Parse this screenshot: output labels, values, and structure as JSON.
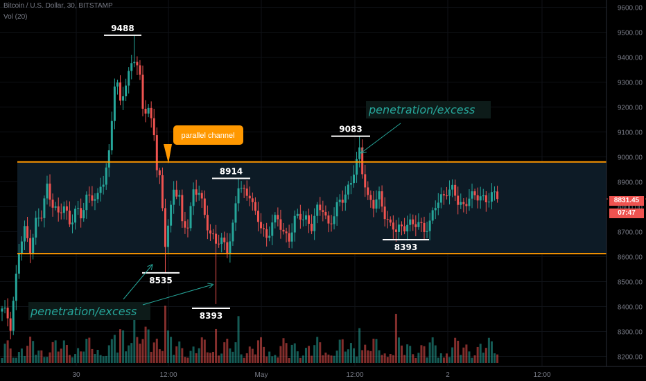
{
  "header": {
    "title": "Bitcoin / U.S. Dollar, 30, BITSTAMP",
    "volume_label": "Vol (20)"
  },
  "current_price": {
    "value": "8831.45",
    "countdown": "07:47",
    "color": "#ef5350"
  },
  "colors": {
    "bull": "#26a69a",
    "bear": "#ef5350",
    "channel": "#ff9800",
    "channel_fill": "#0d1b26",
    "annotation_teal": "#26a69a",
    "axis_text": "#787b86"
  },
  "annotations": {
    "channel_label": "parallel channel",
    "penetration_left": "penetration/excess",
    "penetration_right": "penetration/excess",
    "marks": {
      "high_9488": "9488",
      "low_8535": "8535",
      "low_8393_left": "8393",
      "high_8914": "8914",
      "high_9083": "9083",
      "low_8393_right": "8393"
    }
  },
  "chart_data": {
    "type": "candlestick",
    "title": "Bitcoin / U.S. Dollar, 30, BITSTAMP",
    "y_axis": {
      "labels": [
        "9600.00",
        "9500.00",
        "9400.00",
        "9300.00",
        "9200.00",
        "9100.00",
        "9000.00",
        "8900.00",
        "8800.00",
        "8700.00",
        "8600.00",
        "8500.00",
        "8400.00",
        "8300.00",
        "8200.00"
      ],
      "range": [
        8185,
        9650
      ]
    },
    "x_axis": {
      "labels": [
        "30",
        "12:00",
        "May",
        "12:00",
        "2",
        "12:00"
      ]
    },
    "channel": {
      "upper": 8980,
      "lower": 8612
    },
    "marked_levels": [
      9488,
      8535,
      8393,
      8914,
      9083,
      8393
    ],
    "last_price": 8831.45,
    "close_path": [
      [
        0,
        8380
      ],
      [
        2,
        8360
      ],
      [
        3,
        8330
      ],
      [
        5,
        8520
      ],
      [
        6,
        8620
      ],
      [
        8,
        8700
      ],
      [
        10,
        8640
      ],
      [
        12,
        8740
      ],
      [
        14,
        8760
      ],
      [
        16,
        8880
      ],
      [
        18,
        8820
      ],
      [
        20,
        8760
      ],
      [
        22,
        8800
      ],
      [
        24,
        8740
      ],
      [
        26,
        8790
      ],
      [
        28,
        8750
      ],
      [
        30,
        8840
      ],
      [
        32,
        8850
      ],
      [
        34,
        8830
      ],
      [
        36,
        8900
      ],
      [
        38,
        9020
      ],
      [
        40,
        9300
      ],
      [
        41,
        9280
      ],
      [
        42,
        9200
      ],
      [
        44,
        9300
      ],
      [
        46,
        9380
      ],
      [
        47,
        9400
      ],
      [
        48,
        9360
      ],
      [
        49,
        9300
      ],
      [
        50,
        9190
      ],
      [
        52,
        9200
      ],
      [
        54,
        9100
      ],
      [
        55,
        8950
      ],
      [
        56,
        8900
      ],
      [
        58,
        8660
      ],
      [
        59,
        8740
      ],
      [
        60,
        8800
      ],
      [
        61,
        8870
      ],
      [
        63,
        8830
      ],
      [
        64,
        8720
      ],
      [
        66,
        8740
      ],
      [
        68,
        8860
      ],
      [
        70,
        8850
      ],
      [
        72,
        8770
      ],
      [
        74,
        8700
      ],
      [
        76,
        8650
      ],
      [
        78,
        8660
      ],
      [
        80,
        8640
      ],
      [
        81,
        8680
      ],
      [
        82,
        8720
      ],
      [
        84,
        8880
      ],
      [
        86,
        8860
      ],
      [
        88,
        8860
      ],
      [
        90,
        8760
      ],
      [
        92,
        8720
      ],
      [
        94,
        8680
      ],
      [
        96,
        8740
      ],
      [
        98,
        8740
      ],
      [
        100,
        8700
      ],
      [
        102,
        8680
      ],
      [
        104,
        8740
      ],
      [
        106,
        8760
      ],
      [
        108,
        8760
      ],
      [
        110,
        8720
      ],
      [
        112,
        8780
      ],
      [
        114,
        8800
      ],
      [
        116,
        8730
      ],
      [
        118,
        8760
      ],
      [
        120,
        8820
      ],
      [
        122,
        8860
      ],
      [
        124,
        8900
      ],
      [
        126,
        8970
      ],
      [
        127,
        9020
      ],
      [
        128,
        8950
      ],
      [
        129,
        8900
      ],
      [
        130,
        8840
      ],
      [
        132,
        8800
      ],
      [
        134,
        8840
      ],
      [
        136,
        8780
      ],
      [
        138,
        8720
      ],
      [
        140,
        8700
      ],
      [
        142,
        8720
      ],
      [
        144,
        8740
      ],
      [
        146,
        8720
      ],
      [
        148,
        8730
      ],
      [
        150,
        8720
      ],
      [
        152,
        8730
      ],
      [
        154,
        8800
      ],
      [
        156,
        8840
      ],
      [
        158,
        8870
      ],
      [
        160,
        8860
      ],
      [
        162,
        8820
      ],
      [
        164,
        8810
      ],
      [
        166,
        8840
      ],
      [
        168,
        8830
      ],
      [
        170,
        8850
      ],
      [
        172,
        8830
      ],
      [
        174,
        8840
      ],
      [
        176,
        8831.45
      ]
    ],
    "volume_scale_max": 40000
  }
}
